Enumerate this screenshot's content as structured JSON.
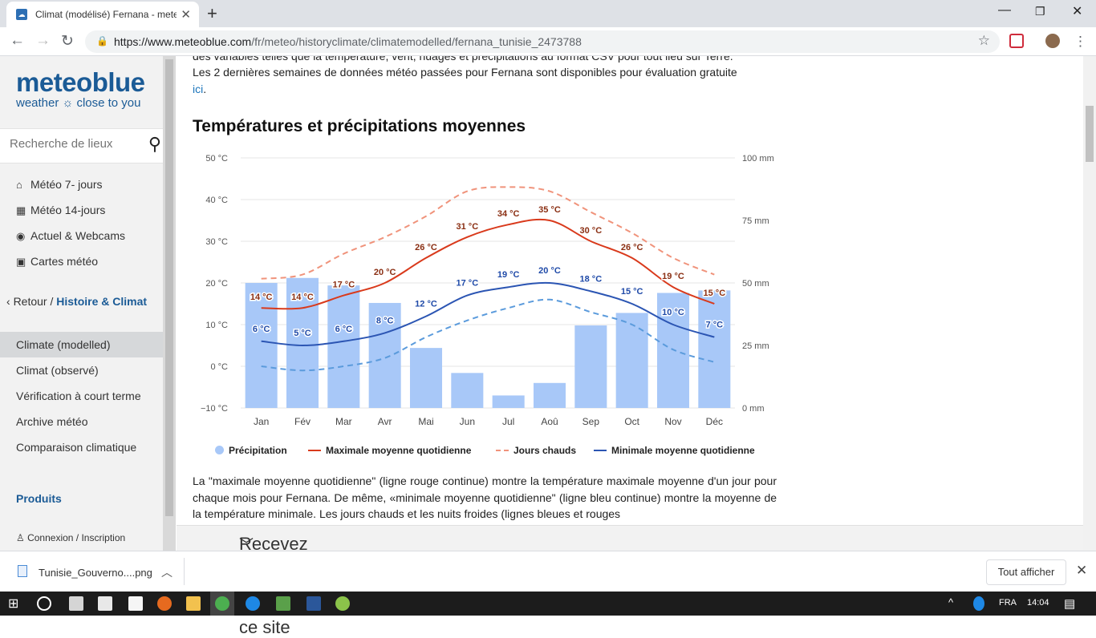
{
  "browser": {
    "tab_title": "Climat (modélisé) Fernana - mete",
    "url_host": "https://www.meteoblue.com",
    "url_path": "/fr/meteo/historyclimate/climatemodelled/fernana_tunisie_2473788"
  },
  "sidebar": {
    "brand": "meteoblue",
    "tagline": "weather ☼ close to you",
    "search_placeholder": "Recherche de lieux",
    "items": [
      {
        "icon": "home-icon",
        "glyph": "⌂",
        "label": "Météo 7- jours"
      },
      {
        "icon": "calendar-14-icon",
        "glyph": "▦",
        "label": "Météo 14-jours"
      },
      {
        "icon": "webcam-icon",
        "glyph": "◉",
        "label": "Actuel & Webcams"
      },
      {
        "icon": "map-icon",
        "glyph": "▣",
        "label": "Cartes météo"
      }
    ],
    "back_label": "Retour /",
    "history_label": "Histoire & Climat",
    "sub_items": [
      "Climate (modelled)",
      "Climat (observé)",
      "Vérification à court terme",
      "Archive météo",
      "Comparaison climatique"
    ],
    "products_label": "Produits",
    "login_label": "Connexion / Inscription"
  },
  "content": {
    "intro_line1": "des variables telles que la température, vent, nuages et précipitations au format CSV pour tout lieu sur Terre.",
    "intro_line2": "Les 2 dernières semaines de données météo passées pour Fernana sont disponibles pour évaluation gratuite",
    "intro_link": "ici",
    "heading": "Températures et précipitations moyennes",
    "desc_line1": "La \"maximale moyenne quotidienne\" (ligne rouge continue) montre la température maximale moyenne d'un",
    "desc_line2": "jour pour chaque mois pour Fernana. De même, «minimale moyenne quotidienne\" (ligne bleu continue)",
    "desc_line3": "montre la moyenne de la température minimale. Les jours chauds et les nuits froides (lignes bleues et rouges",
    "legend": {
      "precip": "Précipitation",
      "max": "Maximale moyenne quotidienne",
      "hot": "Jours chauds",
      "min": "Minimale moyenne quotidienne"
    },
    "banner": "Recevez un accès illimité à ce site"
  },
  "chart_data": {
    "type": "bar",
    "categories": [
      "Jan",
      "Fév",
      "Mar",
      "Avr",
      "Mai",
      "Jun",
      "Jul",
      "Aoû",
      "Sep",
      "Oct",
      "Nov",
      "Déc"
    ],
    "temp_axis": {
      "min": -10,
      "max": 50,
      "ticks": [
        "−10 °C",
        "0 °C",
        "10 °C",
        "20 °C",
        "30 °C",
        "40 °C",
        "50 °C"
      ]
    },
    "precip_axis": {
      "min": 0,
      "max": 100,
      "ticks": [
        "0 mm",
        "25 mm",
        "50 mm",
        "75 mm",
        "100 mm"
      ]
    },
    "series": [
      {
        "name": "Précipitation",
        "unit": "mm",
        "values": [
          50,
          52,
          49,
          42,
          24,
          14,
          5,
          10,
          33,
          38,
          46,
          47
        ]
      },
      {
        "name": "Maximale moyenne quotidienne",
        "unit": "°C",
        "values": [
          14,
          14,
          17,
          20,
          26,
          31,
          34,
          35,
          30,
          26,
          19,
          15
        ],
        "labels": [
          "14 °C",
          "14 °C",
          "17 °C",
          "20 °C",
          "26 °C",
          "31 °C",
          "34 °C",
          "35 °C",
          "30 °C",
          "26 °C",
          "19 °C",
          "15 °C"
        ]
      },
      {
        "name": "Jours chauds",
        "unit": "°C",
        "values": [
          21,
          22,
          27,
          31,
          36,
          42,
          43,
          42,
          37,
          32,
          26,
          22
        ]
      },
      {
        "name": "Minimale moyenne quotidienne",
        "unit": "°C",
        "values": [
          6,
          5,
          6,
          8,
          12,
          17,
          19,
          20,
          18,
          15,
          10,
          7
        ],
        "labels": [
          "6 °C",
          "5 °C",
          "6 °C",
          "8 °C",
          "12 °C",
          "17 °C",
          "19 °C",
          "20 °C",
          "18 °C",
          "15 °C",
          "10 °C",
          "7 °C"
        ]
      },
      {
        "name": "Nuits froides",
        "unit": "°C",
        "values": [
          0,
          -1,
          0,
          2,
          7,
          11,
          14,
          16,
          13,
          10,
          4,
          1
        ]
      }
    ],
    "colors": {
      "precip": "#a8c8f8",
      "max": "#d93a1c",
      "hot": "#f0937b",
      "min": "#2b55b3",
      "cold": "#5b9bdc",
      "maxlabel": "#8a2e12",
      "minlabel": "#1f4aa8"
    }
  },
  "downloads": {
    "file": "Tunisie_Gouverno....png",
    "show_all": "Tout afficher"
  },
  "taskbar": {
    "lang": "FRA",
    "time": "14:04"
  }
}
